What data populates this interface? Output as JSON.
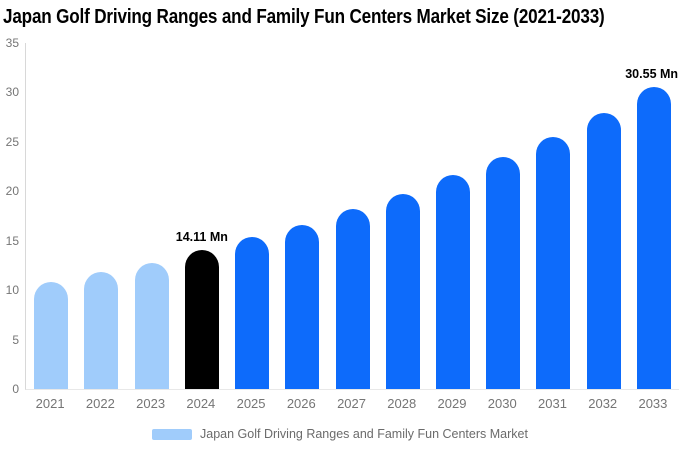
{
  "chart_data": {
    "type": "bar",
    "title": "Japan Golf Driving Ranges and Family Fun Centers Market Size (2021-2033)",
    "categories": [
      "2021",
      "2022",
      "2023",
      "2024",
      "2025",
      "2026",
      "2027",
      "2028",
      "2029",
      "2030",
      "2031",
      "2032",
      "2033"
    ],
    "values": [
      10.85,
      11.86,
      12.8,
      14.11,
      15.35,
      16.6,
      18.2,
      19.7,
      21.65,
      23.45,
      25.5,
      27.95,
      30.55
    ],
    "bar_segments": [
      "historical",
      "historical",
      "historical",
      "highlight",
      "forecast",
      "forecast",
      "forecast",
      "forecast",
      "forecast",
      "forecast",
      "forecast",
      "forecast",
      "forecast"
    ],
    "annotations": [
      {
        "category": "2024",
        "text": "14.11 Mn"
      },
      {
        "category": "2033",
        "text": "30.55 Mn"
      }
    ],
    "unit": "Mn",
    "xlabel": "",
    "ylabel": "",
    "ylim": [
      0,
      35
    ],
    "yticks": [
      0,
      5,
      10,
      15,
      20,
      25,
      30,
      35
    ],
    "grid": false,
    "legend": {
      "position": "bottom",
      "label": "Japan Golf Driving Ranges and Family Fun Centers Market"
    },
    "colors": {
      "historical": "#a0ccfb",
      "highlight": "#000000",
      "forecast": "#0d6bfb",
      "axis_line": "#d8d8d8",
      "baseline": "#e8e8e8",
      "tick_text": "#757575",
      "annotation_text": "#000000",
      "legend_text": "#6b6b6b"
    }
  }
}
